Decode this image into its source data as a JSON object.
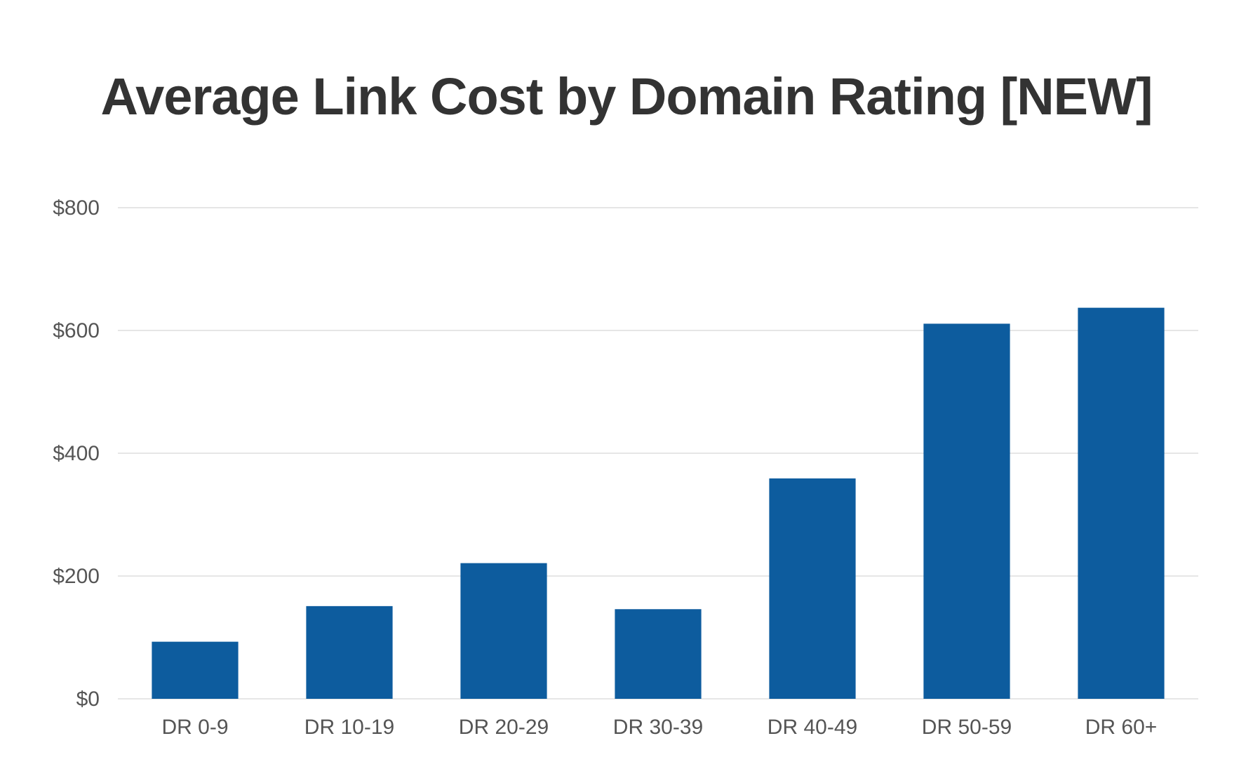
{
  "chart_data": {
    "type": "bar",
    "title": "Average Link Cost by Domain Rating [NEW]",
    "xlabel": "",
    "ylabel": "",
    "categories": [
      "DR 0-9",
      "DR 10-19",
      "DR 20-29",
      "DR 30-39",
      "DR 40-49",
      "DR 50-59",
      "DR 60+"
    ],
    "values": [
      93,
      151,
      221,
      146,
      359,
      611,
      637
    ],
    "ylim": [
      0,
      800
    ],
    "yticks": [
      0,
      200,
      400,
      600,
      800
    ],
    "ytick_labels": [
      "$0",
      "$200",
      "$400",
      "$600",
      "$800"
    ],
    "grid": true,
    "legend": "none",
    "bar_color": "#0d5c9e",
    "grid_color": "#e6e6e6"
  }
}
